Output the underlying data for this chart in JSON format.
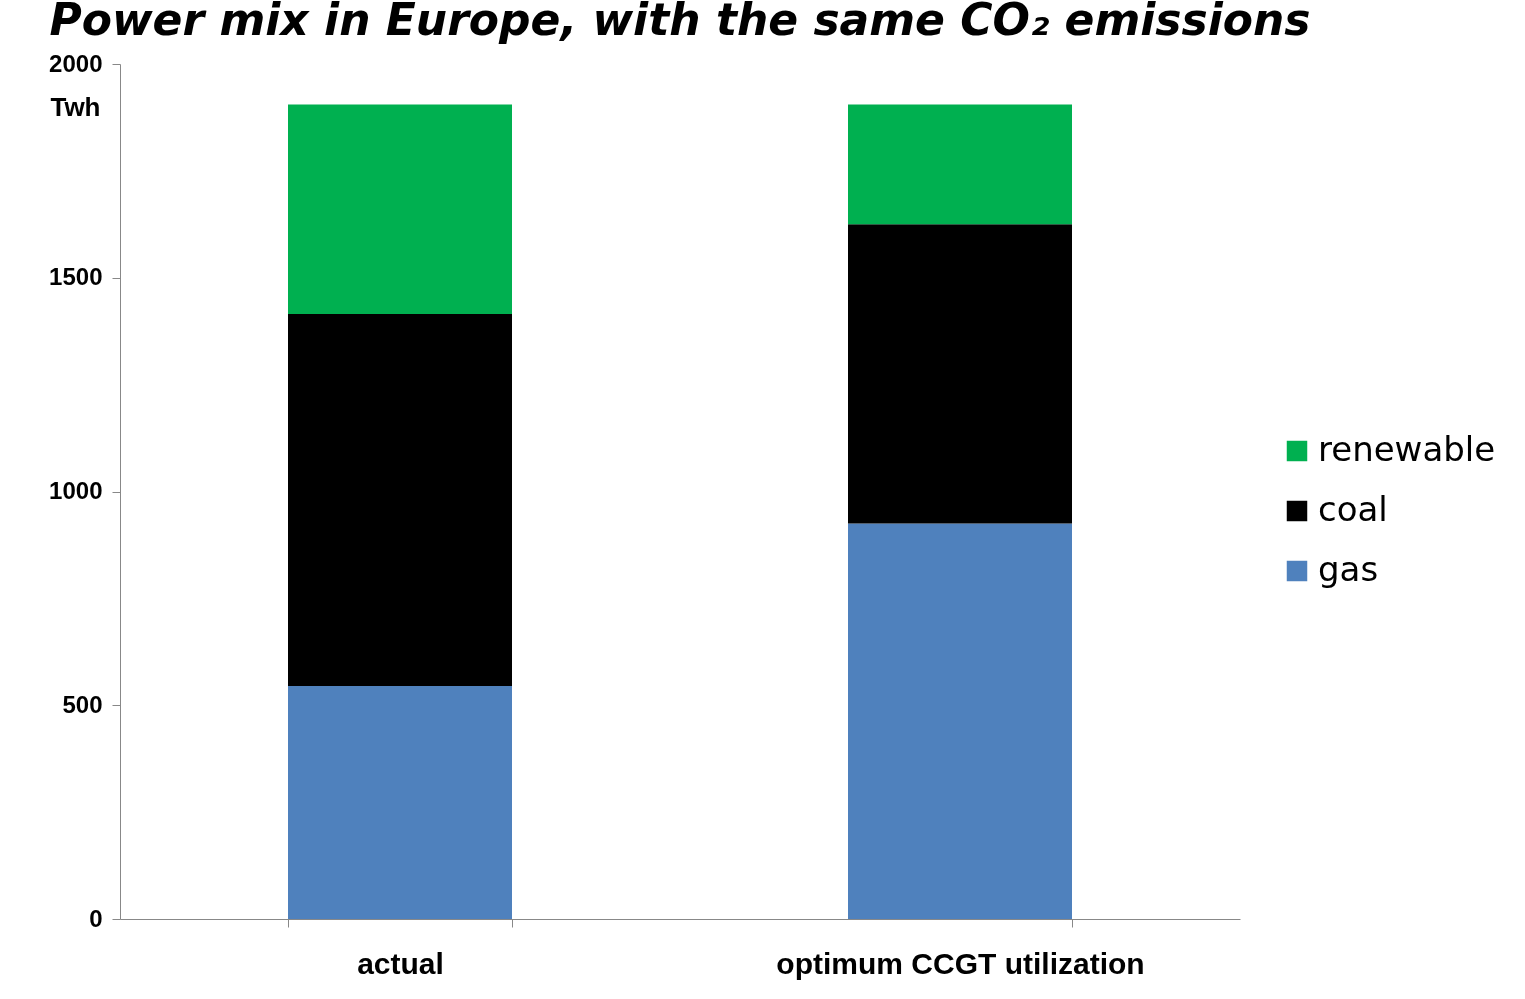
{
  "chart_data": {
    "type": "bar",
    "title": "Power mix in Europe, with the same CO₂ emissions",
    "ylabel": "Twh",
    "categories": [
      "actual",
      "optimum CCGT utilization"
    ],
    "stacked": true,
    "series": [
      {
        "name": "gas",
        "color": "#4f81bd",
        "values": [
          545,
          925
        ]
      },
      {
        "name": "coal",
        "color": "#000000",
        "values": [
          870,
          700
        ]
      },
      {
        "name": "renewable",
        "color": "#00b050",
        "values": [
          490,
          280
        ]
      }
    ],
    "ylim": [
      0,
      2000
    ],
    "yticks": [
      0,
      500,
      1000,
      1500,
      2000
    ],
    "grid": false,
    "legend": "right"
  }
}
